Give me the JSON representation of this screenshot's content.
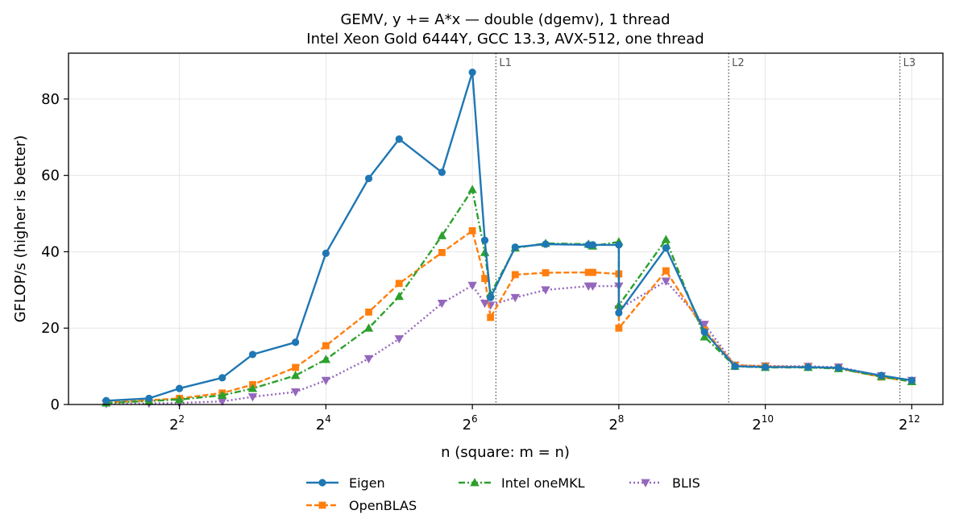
{
  "chart_data": {
    "type": "line",
    "title": "GEMV, y += A*x — double (dgemv), 1 thread",
    "subtitle": "Intel Xeon Gold 6444Y, GCC 13.3, AVX-512, one thread",
    "xlabel": "n (square: m = n)",
    "ylabel": "GFLOP/s (higher is better)",
    "xscale": "log2",
    "xlim": [
      1.4,
      5500
    ],
    "ylim": [
      0,
      92
    ],
    "xticks": [
      {
        "base": "2",
        "exp": "2",
        "value": 4
      },
      {
        "base": "2",
        "exp": "4",
        "value": 16
      },
      {
        "base": "2",
        "exp": "6",
        "value": 64
      },
      {
        "base": "2",
        "exp": "8",
        "value": 256
      },
      {
        "base": "2",
        "exp": "10",
        "value": 1024
      },
      {
        "base": "2",
        "exp": "12",
        "value": 4096
      }
    ],
    "yticks": [
      0,
      20,
      40,
      60,
      80
    ],
    "grid": true,
    "legend_position": "bottom-center",
    "cache_lines": [
      {
        "label": "L1",
        "x": 80
      },
      {
        "label": "L2",
        "x": 724
      },
      {
        "label": "L3",
        "x": 3660
      }
    ],
    "series": [
      {
        "name": "Eigen",
        "color": "#1f77b4",
        "marker": "circle",
        "linestyle": "solid",
        "x": [
          2,
          3,
          4,
          6,
          8,
          12,
          16,
          24,
          32,
          48,
          64,
          72,
          76,
          96,
          128,
          192,
          200,
          256,
          256,
          400,
          576,
          768,
          1024,
          1536,
          2048,
          3072,
          4096
        ],
        "y": [
          1.0,
          1.6,
          4.2,
          7.0,
          13.1,
          16.3,
          39.6,
          59.2,
          69.5,
          60.8,
          87.0,
          43.0,
          28.0,
          41.2,
          42.0,
          41.8,
          41.8,
          41.8,
          24.0,
          41.0,
          19.0,
          10.0,
          9.8,
          9.8,
          9.6,
          7.6,
          6.3
        ]
      },
      {
        "name": "OpenBLAS",
        "color": "#ff7f0e",
        "marker": "square",
        "linestyle": "dashed",
        "x": [
          2,
          3,
          4,
          6,
          8,
          12,
          16,
          24,
          32,
          48,
          64,
          72,
          76,
          96,
          128,
          192,
          200,
          256,
          256,
          400,
          576,
          768,
          1024,
          1536,
          2048,
          3072,
          4096
        ],
        "y": [
          0.5,
          1.1,
          1.6,
          3.0,
          5.2,
          9.7,
          15.4,
          24.2,
          31.7,
          39.8,
          45.5,
          33.0,
          22.8,
          34.0,
          34.5,
          34.6,
          34.6,
          34.2,
          20.0,
          35.0,
          19.5,
          10.3,
          10.0,
          9.8,
          9.5,
          7.2,
          6.0
        ]
      },
      {
        "name": "Intel oneMKL",
        "color": "#2ca02c",
        "marker": "triangle-up",
        "linestyle": "dashdot",
        "x": [
          2,
          3,
          4,
          6,
          8,
          12,
          16,
          24,
          32,
          48,
          64,
          72,
          76,
          96,
          128,
          192,
          200,
          256,
          256,
          400,
          576,
          768,
          1024,
          1536,
          2048,
          3072,
          4096
        ],
        "y": [
          0.4,
          0.9,
          1.3,
          2.4,
          4.2,
          7.6,
          11.8,
          20.0,
          28.3,
          44.2,
          56.3,
          39.8,
          29.0,
          41.0,
          42.2,
          42.0,
          41.5,
          42.6,
          26.0,
          43.2,
          17.7,
          10.0,
          9.7,
          9.7,
          9.4,
          7.3,
          6.0
        ]
      },
      {
        "name": "BLIS",
        "color": "#9467bd",
        "marker": "triangle-down",
        "linestyle": "dotted",
        "x": [
          2,
          3,
          4,
          6,
          8,
          12,
          16,
          24,
          32,
          48,
          64,
          72,
          76,
          96,
          128,
          192,
          200,
          256,
          256,
          400,
          576,
          768,
          1024,
          1536,
          2048,
          3072,
          4096
        ],
        "y": [
          0.2,
          0.3,
          0.4,
          0.8,
          2.0,
          3.3,
          6.3,
          12.0,
          17.2,
          26.5,
          31.2,
          26.5,
          26.0,
          28.0,
          30.0,
          31.0,
          31.0,
          31.0,
          25.0,
          32.3,
          21.0,
          10.3,
          10.1,
          10.0,
          9.8,
          7.5,
          6.3
        ]
      }
    ]
  }
}
